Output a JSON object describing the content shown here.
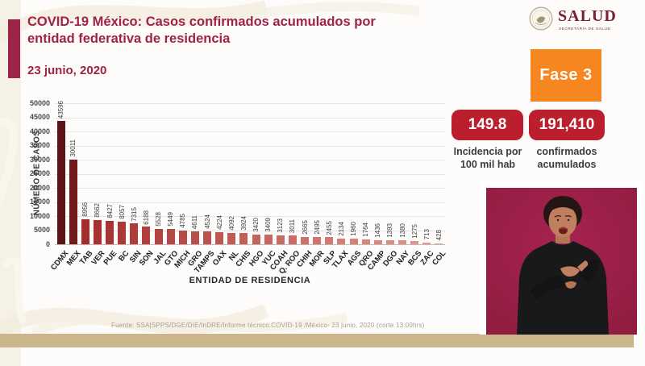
{
  "header": {
    "title": "COVID-19 México: Casos confirmados acumulados por entidad federativa de residencia",
    "date": "23 junio, 2020",
    "accent_color": "#9d2348"
  },
  "logo": {
    "name": "SALUD",
    "subtitle": "SECRETARÍA DE SALUD",
    "seal_icon": "mexican-government-eagle-seal",
    "color": "#7b1d33"
  },
  "phase_badge": {
    "label": "Fase 3",
    "background": "#f6861f",
    "text_color": "#ffffff"
  },
  "stats": [
    {
      "value": "149.8",
      "label_line1": "Incidencia por",
      "label_line2": "100 mil hab",
      "box_color": "#bb1e2d"
    },
    {
      "value": "191,410",
      "label_line1": "confirmados",
      "label_line2": "acumulados",
      "box_color": "#bb1e2d"
    }
  ],
  "chart_data": {
    "type": "bar",
    "title": "",
    "xlabel": "ENTIDAD DE RESIDENCIA",
    "ylabel": "NÚMERO DE CASOS",
    "ylim": [
      0,
      50000
    ],
    "ytick_step": 5000,
    "grid": true,
    "legend": false,
    "categories": [
      "CDMX",
      "MEX",
      "TAB",
      "VER",
      "PUE",
      "BC",
      "SIN",
      "SON",
      "JAL",
      "GTO",
      "MICH",
      "GRO",
      "TAMPS",
      "OAX",
      "NL",
      "CHIS",
      "HGO",
      "YUC",
      "COAH",
      "Q. ROO",
      "CHIH",
      "MOR",
      "SLP",
      "TLAX",
      "AGS",
      "QRO",
      "CAMP",
      "DGO",
      "NAY",
      "BCS",
      "ZAC",
      "COL"
    ],
    "values": [
      43596,
      30011,
      8956,
      8662,
      8427,
      8057,
      7315,
      6188,
      5528,
      5449,
      4785,
      4611,
      4524,
      4224,
      4092,
      3924,
      3420,
      3409,
      3123,
      3011,
      2665,
      2495,
      2455,
      2134,
      1960,
      1764,
      1436,
      1393,
      1380,
      1275,
      713,
      428
    ],
    "bar_color_stops": {
      "first": "#5c1414",
      "second": "#701a1a",
      "range_start": "#a62c2c",
      "range_end": "#e59b91"
    }
  },
  "footer": {
    "source": "Fuente: SSA|SPPS/DGE/DIE/InDRE/Informe técnico.COVID-19 /México- 23 junio, 2020 (corte 13:00hrs)",
    "band_color": "#cbb68c"
  },
  "interpreter_panel": {
    "background": "#9e1f42"
  }
}
